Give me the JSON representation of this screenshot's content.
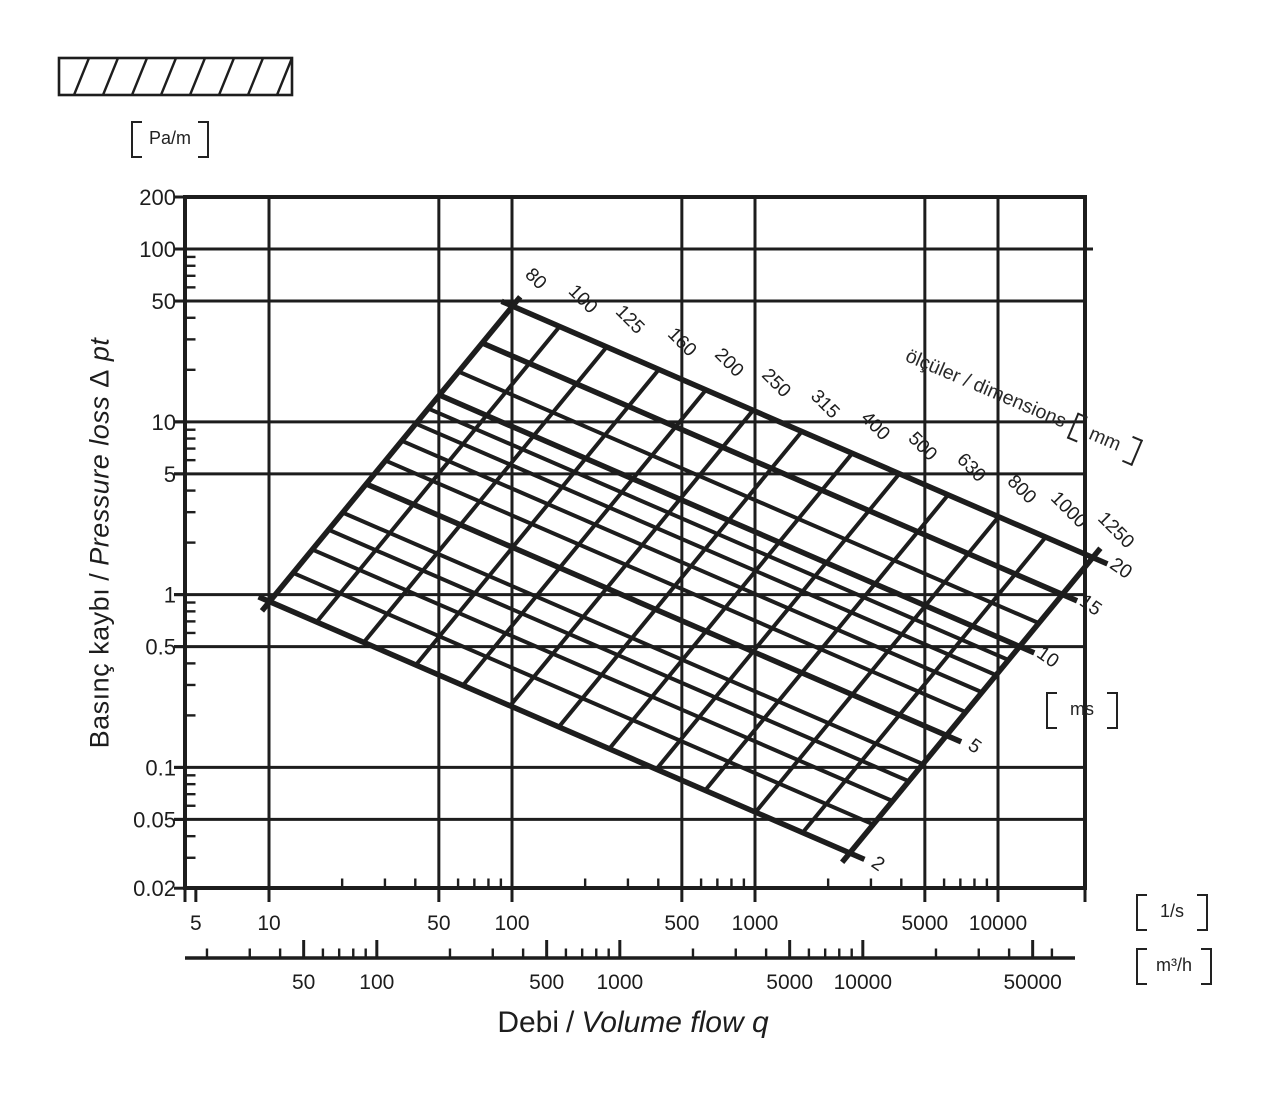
{
  "page": {
    "background": "#ffffff",
    "ink": "#1d1d1d"
  },
  "unit_labels": {
    "pressure": "Pa/m",
    "velocity": "ms",
    "flow_ls": "1/s",
    "flow_m3h": "m³/h",
    "dimension_mm": "mm"
  },
  "titles": {
    "y_tr": "Basınç kaybı",
    "y_sep": "/",
    "y_en": "Pressure loss",
    "y_symbol": "Δ",
    "y_sub": "pt",
    "x_tr": "Debi",
    "x_sep": "/",
    "x_en": "Volume flow q",
    "dims_label": "ölçüler / dimensions"
  },
  "chart_data": {
    "type": "line",
    "title": "Debi / Volume flow q vs Basınç kaybı / Pressure loss Δpt",
    "xlabel": "Debi / Volume flow q",
    "ylabel": "Basınç kaybı / Pressure loss Δ pt [Pa/m]",
    "x_axis": {
      "scale": "log",
      "primary_unit": "1/s",
      "primary_ticks": [
        5,
        10,
        50,
        100,
        500,
        1000,
        5000,
        10000
      ],
      "primary_minor": [
        20,
        30,
        40,
        60,
        70,
        80,
        90,
        200,
        300,
        400,
        600,
        700,
        800,
        900,
        2000,
        3000,
        4000,
        6000,
        7000,
        8000,
        9000
      ],
      "secondary_unit": "m³/h",
      "secondary_ticks": [
        50,
        100,
        500,
        1000,
        5000,
        10000,
        50000
      ],
      "secondary_minor": [
        20,
        30,
        40,
        60,
        70,
        80,
        90,
        200,
        300,
        400,
        600,
        700,
        800,
        900,
        2000,
        3000,
        4000,
        6000,
        7000,
        8000,
        9000,
        20000,
        30000,
        40000,
        60000
      ],
      "range_ls": [
        4.5,
        22000
      ]
    },
    "y_axis": {
      "scale": "log",
      "unit": "Pa/m",
      "ticks": [
        200,
        100,
        50,
        10,
        5,
        1,
        0.5,
        0.1,
        0.05,
        0.02
      ],
      "minor": [
        90,
        80,
        70,
        60,
        40,
        30,
        20,
        9,
        8,
        7,
        6,
        4,
        3,
        2,
        0.9,
        0.8,
        0.7,
        0.6,
        0.4,
        0.3,
        0.2,
        0.09,
        0.08,
        0.07,
        0.06,
        0.04,
        0.03
      ],
      "range": [
        0.02,
        200
      ]
    },
    "grid": {
      "x_lines_ls": [
        10,
        50,
        100,
        500,
        1000,
        5000,
        10000
      ],
      "y_lines_pam": [
        100,
        50,
        10,
        5,
        1,
        0.5,
        0.1,
        0.05
      ]
    },
    "diameter_lines_mm": [
      80,
      100,
      125,
      160,
      200,
      250,
      315,
      400,
      500,
      630,
      800,
      1000,
      1250
    ],
    "diameter_velocity_span_ms": [
      2,
      20
    ],
    "velocity_lines_ms": [
      2,
      2.5,
      3,
      3.5,
      4,
      5,
      6,
      7,
      8,
      9,
      10,
      12,
      15,
      20
    ],
    "labeled_velocity_ms": [
      2,
      5,
      10,
      15,
      20
    ],
    "annotation_dimensions": "ölçüler / dimensions [mm]",
    "annotation_velocity_unit": "ms",
    "legend_position": "along top-right mesh edge"
  }
}
